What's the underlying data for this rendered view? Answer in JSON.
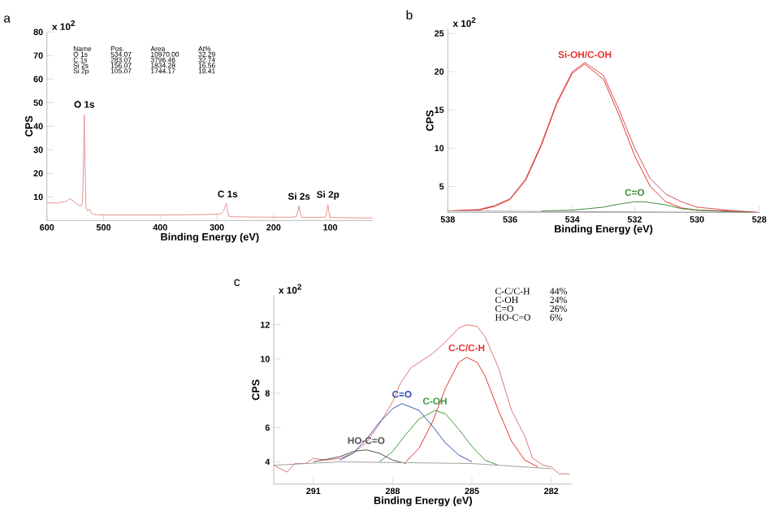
{
  "chart_data": [
    {
      "type": "line",
      "title": "a",
      "xlabel": "Binding Energy (eV)",
      "ylabel": "CPS",
      "xlim": [
        600,
        25
      ],
      "ylim": [
        0,
        80
      ],
      "xticks": [
        600,
        500,
        400,
        300,
        200,
        100
      ],
      "yticks": [
        10,
        20,
        30,
        40,
        50,
        60,
        70,
        80
      ],
      "series": [
        {
          "color": "#e89090",
          "x": [
            600,
            580,
            565,
            560,
            555,
            548,
            540,
            537,
            535,
            534,
            533,
            531,
            528,
            525,
            522,
            518,
            510,
            500,
            450,
            400,
            350,
            300,
            292,
            288,
            285,
            283,
            281,
            279,
            275,
            250,
            200,
            170,
            160,
            157,
            155,
            153,
            150,
            140,
            120,
            108,
            106,
            104,
            102,
            100,
            80,
            50,
            25
          ],
          "values": [
            7.5,
            7.4,
            8.2,
            9.3,
            8.6,
            7.2,
            6.0,
            8,
            30,
            45,
            28,
            5.5,
            4.0,
            4.8,
            3.2,
            2.6,
            2.4,
            2.3,
            2.3,
            2.3,
            2.4,
            2.7,
            3.0,
            4.0,
            6.5,
            7.3,
            4.0,
            1.8,
            1.6,
            1.5,
            1.4,
            1.4,
            1.6,
            4.0,
            6.2,
            3.0,
            1.4,
            1.3,
            1.3,
            1.5,
            3.5,
            6.7,
            3.0,
            1.3,
            1.2,
            1.1,
            1.1
          ]
        }
      ],
      "annotations": [
        "x 10$^{2}$",
        "Name",
        "Pos.",
        "Area",
        "At%",
        "O 1s",
        "534.07",
        "10970.00",
        "32.29",
        "C 1s",
        "283.07",
        "3796.46",
        "32.74",
        "Si 2s",
        "156.07",
        "1834.28",
        "16.56",
        "Si 2p",
        "105.07",
        "1744.17",
        "18.41",
        {
          "text": "O 1s",
          "x": 534,
          "y": 47
        },
        {
          "text": "C 1s",
          "x": 281,
          "y": 9
        },
        {
          "text": "Si 2s",
          "x": 155,
          "y": 8
        },
        {
          "text": "Si 2p",
          "x": 104,
          "y": 8
        }
      ]
    },
    {
      "type": "line",
      "title": "b",
      "xlabel": "Binding Energy (eV)",
      "ylabel": "CPS",
      "xlim": [
        538,
        528
      ],
      "ylim": [
        1.6,
        25.6
      ],
      "xticks": [
        538,
        536,
        534,
        532,
        530,
        528
      ],
      "yticks": [
        5,
        10,
        15,
        20,
        25
      ],
      "series": [
        {
          "color": "#d05050",
          "x": [
            538,
            537,
            536.5,
            536,
            535.5,
            535,
            534.5,
            534,
            533.6,
            533,
            532.5,
            532,
            531.5,
            531,
            530.5,
            530,
            529,
            528
          ],
          "values": [
            1.8,
            2.0,
            2.5,
            3.4,
            6.0,
            10.5,
            16.0,
            20.0,
            21.2,
            19.5,
            15.0,
            10.0,
            6.0,
            4.0,
            3.0,
            2.3,
            1.9,
            1.6
          ]
        },
        {
          "name": "Si-OH/C-OH",
          "color": "#e83030",
          "x": [
            538,
            537,
            536.5,
            536,
            535.5,
            535,
            534.5,
            534,
            533.6,
            533,
            532.5,
            532,
            531.5,
            531,
            530.5,
            530,
            529,
            528
          ],
          "values": [
            1.8,
            1.9,
            2.4,
            3.3,
            5.8,
            10.3,
            15.8,
            19.8,
            21.0,
            19.0,
            14.3,
            9.0,
            5.0,
            3.0,
            2.2,
            1.9,
            1.8,
            1.6
          ]
        },
        {
          "name": "C=O",
          "color": "#3a8a3a",
          "x": [
            535,
            534,
            533,
            532.5,
            532,
            531.7,
            531,
            530.5,
            530,
            529,
            528
          ],
          "values": [
            1.8,
            1.9,
            2.3,
            2.7,
            3.0,
            3.0,
            2.6,
            2.1,
            1.9,
            1.7,
            1.6
          ]
        },
        {
          "color": "#a0a0a0",
          "x": [
            538,
            528
          ],
          "values": [
            1.8,
            1.6
          ]
        }
      ],
      "annotations": [
        "x 10$^{2}$"
      ]
    },
    {
      "type": "line",
      "title": "c",
      "xlabel": "Binding Energy (eV)",
      "ylabel": "CPS",
      "xlim": [
        292.5,
        281.2
      ],
      "ylim": [
        2.7,
        13.7
      ],
      "xticks": [
        291,
        288,
        285,
        282
      ],
      "yticks": [
        4,
        6,
        8,
        10,
        12
      ],
      "series": [
        {
          "color": "#e07070",
          "x": [
            292.5,
            292,
            291.7,
            291.3,
            291,
            290.5,
            290,
            289.5,
            289,
            288.5,
            288,
            287.7,
            287.3,
            287,
            286.5,
            286,
            285.5,
            285.2,
            284.8,
            284.5,
            284,
            283.5,
            283,
            282.7,
            282.3,
            282,
            281.7,
            281.3
          ],
          "values": [
            3.8,
            3.4,
            3.9,
            3.9,
            4.2,
            4.1,
            4.2,
            4.5,
            5.1,
            6.2,
            7.5,
            8.6,
            9.5,
            9.8,
            10.3,
            11.0,
            11.8,
            12.0,
            11.9,
            11.3,
            9.5,
            7.0,
            5.5,
            4.2,
            3.8,
            3.7,
            3.3,
            3.3
          ]
        },
        {
          "name": "C-C/C-H",
          "color": "#e83030",
          "x": [
            287.5,
            287,
            286.5,
            286,
            285.5,
            285.2,
            284.8,
            284.5,
            284,
            283.5,
            283,
            282.5
          ],
          "values": [
            4.0,
            4.8,
            6.3,
            8.3,
            9.8,
            10.1,
            9.8,
            9.0,
            7.0,
            5.2,
            4.1,
            3.7
          ]
        },
        {
          "name": "C-OH",
          "color": "#3a9a3a",
          "x": [
            288.5,
            288,
            287.5,
            287,
            286.4,
            286,
            285.5,
            285,
            284.5,
            284
          ],
          "values": [
            4.0,
            4.6,
            5.6,
            6.5,
            7.0,
            6.8,
            5.9,
            4.9,
            4.1,
            3.8
          ]
        },
        {
          "name": "C=O",
          "color": "#3050b0",
          "x": [
            290,
            289.5,
            289,
            288.5,
            288,
            287.65,
            287,
            286.5,
            286,
            285.5,
            285
          ],
          "values": [
            4.1,
            4.5,
            5.3,
            6.3,
            7.1,
            7.4,
            7.0,
            6.1,
            5.1,
            4.4,
            4.0
          ]
        },
        {
          "name": "HO-C=O",
          "color": "#505050",
          "x": [
            291,
            290,
            289.5,
            289,
            288.5,
            288,
            287.5
          ],
          "values": [
            4.0,
            4.3,
            4.6,
            4.7,
            4.5,
            4.1,
            3.9
          ]
        },
        {
          "color": "#a0a0a0",
          "x": [
            292.5,
            290,
            285,
            282
          ],
          "values": [
            3.8,
            4.0,
            3.9,
            3.6
          ]
        }
      ],
      "annotations": [
        "x 10$^{2}$",
        "C-C/C-H",
        "44%",
        "C-OH",
        "24%",
        "C=O",
        "26%",
        "HO-C=O",
        "6%"
      ]
    }
  ]
}
